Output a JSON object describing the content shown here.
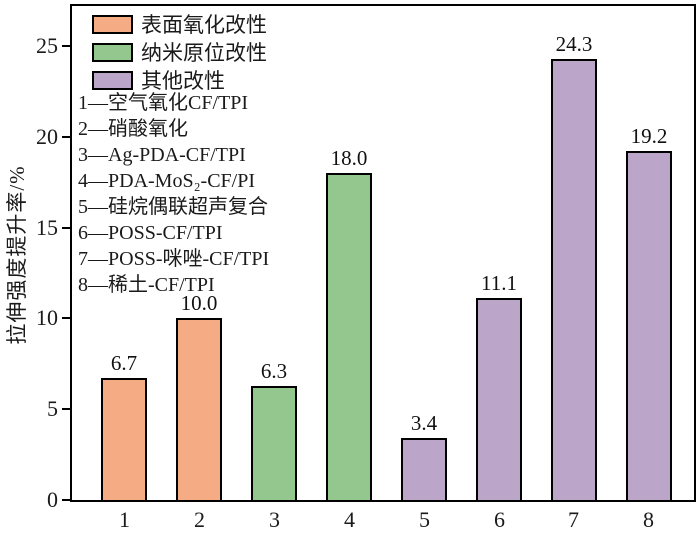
{
  "chart_data": {
    "type": "bar",
    "categories": [
      "1",
      "2",
      "3",
      "4",
      "5",
      "6",
      "7",
      "8"
    ],
    "values": [
      6.7,
      10.0,
      6.3,
      18.0,
      3.4,
      11.1,
      24.3,
      19.2
    ],
    "value_labels": [
      "6.7",
      "10.0",
      "6.3",
      "18.0",
      "3.4",
      "11.1",
      "24.3",
      "19.2"
    ],
    "bar_colors": [
      "#f5ac84",
      "#f5ac84",
      "#93c78d",
      "#93c78d",
      "#bba6c9",
      "#bba6c9",
      "#bba6c9",
      "#bba6c9"
    ],
    "bar_border_color": "#000000",
    "title": "",
    "xlabel": "",
    "ylabel": "拉伸强度提升率/%",
    "ylim": [
      0,
      27.2
    ],
    "yticks": [
      0,
      5,
      10,
      15,
      20,
      25
    ],
    "grid": false,
    "legend_position": "upper-left",
    "legend": [
      {
        "label": "表面氧化改性",
        "color": "#f5ac84"
      },
      {
        "label": "纳米原位改性",
        "color": "#93c78d"
      },
      {
        "label": "其他改性",
        "color": "#bba6c9"
      }
    ],
    "annotations": [
      "1—空气氧化CF/TPI",
      "2—硝酸氧化",
      "3—Ag-PDA-CF/TPI",
      "4—PDA-MoS₂-CF/PI",
      "5—硅烷偶联超声复合",
      "6—POSS-CF/TPI",
      "7—POSS-咪唑-CF/TPI",
      "8—稀土-CF/TPI"
    ]
  }
}
